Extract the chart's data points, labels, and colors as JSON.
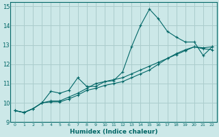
{
  "xlabel": "Humidex (Indice chaleur)",
  "background_color": "#cce8e8",
  "grid_color": "#aacccc",
  "line_color": "#006666",
  "xlim": [
    -0.5,
    22.5
  ],
  "ylim": [
    9,
    15.2
  ],
  "xticks": [
    0,
    1,
    2,
    3,
    4,
    5,
    6,
    7,
    8,
    9,
    10,
    11,
    12,
    13,
    14,
    15,
    16,
    17,
    18,
    19,
    20,
    21,
    22
  ],
  "yticks": [
    9,
    10,
    11,
    12,
    13,
    14,
    15
  ],
  "series": [
    {
      "x": [
        0,
        1,
        2,
        3,
        4,
        5,
        6,
        7,
        8,
        9,
        10,
        11,
        12,
        13,
        14,
        15,
        16,
        17,
        18,
        19,
        20,
        21,
        22
      ],
      "y": [
        9.6,
        9.5,
        9.7,
        10.0,
        10.6,
        10.5,
        10.65,
        11.3,
        10.85,
        10.85,
        11.1,
        11.15,
        11.6,
        12.9,
        14.0,
        14.85,
        14.35,
        13.7,
        13.4,
        13.15,
        13.15,
        12.45,
        12.9
      ]
    },
    {
      "x": [
        0,
        1,
        2,
        3,
        4,
        5,
        6,
        7,
        8,
        9,
        10,
        11,
        12,
        13,
        14,
        15,
        16,
        17,
        18,
        19,
        20,
        21,
        22
      ],
      "y": [
        9.6,
        9.5,
        9.7,
        10.0,
        10.1,
        10.1,
        10.3,
        10.5,
        10.75,
        11.0,
        11.1,
        11.2,
        11.3,
        11.5,
        11.7,
        11.9,
        12.1,
        12.3,
        12.55,
        12.75,
        12.9,
        12.85,
        12.9
      ]
    },
    {
      "x": [
        0,
        1,
        2,
        3,
        4,
        5,
        6,
        7,
        8,
        9,
        10,
        11,
        12,
        13,
        14,
        15,
        16,
        17,
        18,
        19,
        20,
        21,
        22
      ],
      "y": [
        9.6,
        9.5,
        9.7,
        10.0,
        10.05,
        10.05,
        10.2,
        10.4,
        10.65,
        10.75,
        10.9,
        11.0,
        11.1,
        11.3,
        11.5,
        11.7,
        12.0,
        12.3,
        12.5,
        12.7,
        12.9,
        12.8,
        12.75
      ]
    }
  ]
}
